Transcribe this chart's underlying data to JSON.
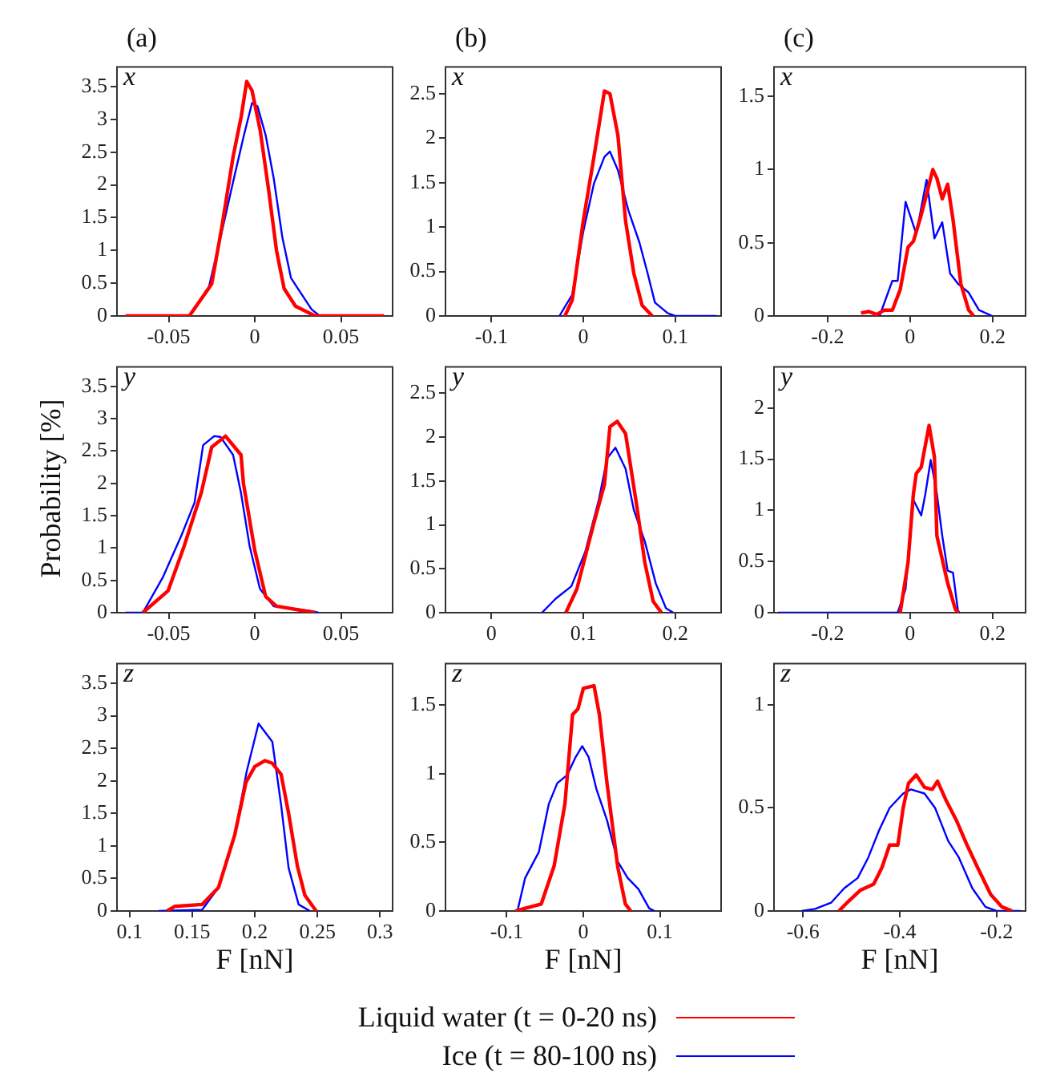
{
  "chart_data": [
    {
      "type": "line",
      "title": "(a)",
      "annotations": [
        "x"
      ],
      "xlim": [
        -0.08,
        0.08
      ],
      "xticks": [
        -0.05,
        0,
        0.05
      ],
      "ylim": [
        0,
        3.8
      ],
      "yticks": [
        0,
        0.5,
        1,
        1.5,
        2,
        2.5,
        3,
        3.5
      ],
      "legend": "bottom",
      "series": [
        {
          "name": "Liquid water (t = 0-20 ns)",
          "color": "#ff0000",
          "x": [
            -0.075,
            -0.038,
            -0.025,
            -0.019,
            -0.0126,
            -0.0079,
            -0.0047,
            -0.0016,
            0.0031,
            0.0079,
            0.0126,
            0.017,
            0.0236,
            0.035,
            0.075
          ],
          "values": [
            0,
            0,
            0.49,
            1.38,
            2.43,
            3.04,
            3.58,
            3.44,
            2.84,
            1.95,
            1.0,
            0.42,
            0.15,
            0,
            0
          ]
        },
        {
          "name": "Ice (t = 80-100 ns)",
          "color": "#0000ff",
          "x": [
            -0.05,
            -0.038,
            -0.027,
            -0.019,
            -0.013,
            -0.0063,
            -0.0016,
            0.0016,
            0.0063,
            0.011,
            0.016,
            0.021,
            0.0267,
            0.033,
            0.0377
          ],
          "values": [
            0,
            0,
            0.4,
            1.3,
            2.0,
            2.76,
            3.25,
            3.2,
            2.76,
            2.1,
            1.2,
            0.58,
            0.35,
            0.1,
            0
          ]
        }
      ]
    },
    {
      "type": "line",
      "title": "(b)",
      "annotations": [
        "x"
      ],
      "xlim": [
        -0.15,
        0.15
      ],
      "xticks": [
        -0.1,
        0,
        0.1
      ],
      "ylim": [
        0,
        2.8
      ],
      "yticks": [
        0,
        0.5,
        1,
        1.5,
        2,
        2.5
      ],
      "series": [
        {
          "color": "#ff0000",
          "x": [
            -0.02,
            -0.012,
            0,
            0.0116,
            0.023,
            0.029,
            0.0377,
            0.046,
            0.055,
            0.064,
            0.075
          ],
          "values": [
            0,
            0.18,
            1.07,
            1.79,
            2.53,
            2.5,
            2.03,
            1.07,
            0.48,
            0.12,
            0
          ]
        },
        {
          "color": "#0000ff",
          "x": [
            -0.026,
            -0.012,
            0,
            0.0116,
            0.023,
            0.029,
            0.0377,
            0.049,
            0.061,
            0.07,
            0.078,
            0.092,
            0.1,
            0.145
          ],
          "values": [
            0,
            0.24,
            0.95,
            1.49,
            1.79,
            1.85,
            1.64,
            1.19,
            0.83,
            0.48,
            0.15,
            0.03,
            0,
            0
          ]
        }
      ]
    },
    {
      "type": "line",
      "title": "(c)",
      "annotations": [
        "x"
      ],
      "xlim": [
        -0.33,
        0.28
      ],
      "xticks": [
        -0.2,
        0,
        0.2
      ],
      "ylim": [
        0,
        1.7
      ],
      "yticks": [
        0,
        0.5,
        1,
        1.5
      ],
      "series": [
        {
          "color": "#ff0000",
          "x": [
            -0.119,
            -0.1,
            -0.081,
            -0.062,
            -0.043,
            -0.024,
            -0.005,
            0.008,
            0.027,
            0.04,
            0.055,
            0.065,
            0.078,
            0.091,
            0.104,
            0.123,
            0.142,
            0.154
          ],
          "values": [
            0.02,
            0.03,
            0.01,
            0.04,
            0.04,
            0.18,
            0.47,
            0.51,
            0.69,
            0.83,
            1.0,
            0.94,
            0.8,
            0.9,
            0.66,
            0.22,
            0.04,
            0
          ]
        },
        {
          "color": "#0000ff",
          "x": [
            -0.074,
            -0.043,
            -0.03,
            -0.011,
            0.015,
            0.04,
            0.059,
            0.078,
            0.097,
            0.116,
            0.142,
            0.167,
            0.199
          ],
          "values": [
            0,
            0.24,
            0.24,
            0.78,
            0.56,
            0.93,
            0.53,
            0.64,
            0.29,
            0.22,
            0.16,
            0.04,
            0
          ]
        }
      ]
    },
    {
      "type": "line",
      "ylabel": "Probability [%]",
      "annotations": [
        "y"
      ],
      "xlim": [
        -0.08,
        0.08
      ],
      "xticks": [
        -0.05,
        0,
        0.05
      ],
      "ylim": [
        0,
        3.8
      ],
      "yticks": [
        0,
        0.5,
        1,
        1.5,
        2,
        2.5,
        3,
        3.5
      ],
      "series": [
        {
          "color": "#ff0000",
          "x": [
            -0.065,
            -0.0503,
            -0.041,
            -0.031,
            -0.025,
            -0.017,
            -0.008,
            -0.0066,
            0,
            0.0063,
            0.0126,
            0.035
          ],
          "values": [
            0,
            0.34,
            1.03,
            1.86,
            2.56,
            2.73,
            2.44,
            2.0,
            0.96,
            0.25,
            0.1,
            0
          ]
        },
        {
          "color": "#0000ff",
          "x": [
            -0.075,
            -0.065,
            -0.0535,
            -0.0425,
            -0.035,
            -0.03,
            -0.0236,
            -0.02,
            -0.0126,
            -0.008,
            -0.003,
            0.003,
            0.011,
            0.032,
            0.037
          ],
          "values": [
            0,
            0,
            0.54,
            1.2,
            1.7,
            2.59,
            2.73,
            2.72,
            2.44,
            1.85,
            1.03,
            0.37,
            0.1,
            0.03,
            0
          ]
        }
      ]
    },
    {
      "type": "line",
      "annotations": [
        "y"
      ],
      "xlim": [
        -0.05,
        0.25
      ],
      "xticks": [
        0,
        0.1,
        0.2
      ],
      "ylim": [
        0,
        2.8
      ],
      "yticks": [
        0,
        0.5,
        1,
        1.5,
        2,
        2.5
      ],
      "series": [
        {
          "color": "#ff0000",
          "x": [
            0.081,
            0.093,
            0.111,
            0.123,
            0.129,
            0.137,
            0.146,
            0.158,
            0.167,
            0.176,
            0.185
          ],
          "values": [
            0,
            0.27,
            1.0,
            1.46,
            2.12,
            2.18,
            2.04,
            1.23,
            0.57,
            0.13,
            0
          ]
        },
        {
          "color": "#0000ff",
          "x": [
            0.055,
            0.07,
            0.087,
            0.102,
            0.117,
            0.126,
            0.135,
            0.146,
            0.155,
            0.167,
            0.179,
            0.19,
            0.198
          ],
          "values": [
            0,
            0.16,
            0.3,
            0.69,
            1.29,
            1.76,
            1.88,
            1.64,
            1.17,
            0.81,
            0.33,
            0.05,
            0
          ]
        }
      ]
    },
    {
      "type": "line",
      "annotations": [
        "y"
      ],
      "xlim": [
        -0.33,
        0.28
      ],
      "xticks": [
        -0.2,
        0,
        0.2
      ],
      "ylim": [
        0,
        2.4
      ],
      "yticks": [
        0,
        0.5,
        1,
        1.5,
        2
      ],
      "series": [
        {
          "color": "#ff0000",
          "x": [
            -0.024,
            -0.005,
            0.008,
            0.015,
            0.027,
            0.046,
            0.059,
            0.065,
            0.091,
            0.11,
            0.118
          ],
          "values": [
            0,
            0.49,
            1.16,
            1.36,
            1.42,
            1.83,
            1.52,
            0.75,
            0.29,
            0.03,
            0
          ]
        },
        {
          "color": "#0000ff",
          "x": [
            -0.32,
            -0.03,
            -0.011,
            0.008,
            0.027,
            0.037,
            0.05,
            0.065,
            0.078,
            0.091,
            0.104,
            0.116,
            0.12
          ],
          "values": [
            0,
            0,
            0.23,
            1.1,
            0.95,
            1.16,
            1.49,
            1.16,
            0.75,
            0.41,
            0.39,
            0.02,
            0
          ]
        }
      ]
    },
    {
      "type": "line",
      "xlabel": "F [nN]",
      "annotations": [
        "z"
      ],
      "xlim": [
        0.09,
        0.31
      ],
      "xticks": [
        0.1,
        0.15,
        0.2,
        0.25,
        0.3
      ],
      "ylim": [
        0,
        3.8
      ],
      "yticks": [
        0,
        0.5,
        1,
        1.5,
        2,
        2.5,
        3,
        3.5
      ],
      "series": [
        {
          "color": "#ff0000",
          "x": [
            0.13,
            0.136,
            0.158,
            0.171,
            0.184,
            0.193,
            0.2,
            0.208,
            0.214,
            0.221,
            0.227,
            0.234,
            0.24,
            0.249
          ],
          "values": [
            0,
            0.07,
            0.1,
            0.36,
            1.17,
            1.98,
            2.22,
            2.31,
            2.27,
            2.1,
            1.5,
            0.69,
            0.24,
            0
          ]
        },
        {
          "color": "#0000ff",
          "x": [
            0.123,
            0.158,
            0.171,
            0.184,
            0.1935,
            0.203,
            0.214,
            0.221,
            0.227,
            0.235,
            0.244
          ],
          "values": [
            0,
            0.02,
            0.36,
            1.17,
            2.14,
            2.88,
            2.6,
            1.63,
            0.66,
            0.1,
            0
          ]
        }
      ]
    },
    {
      "type": "line",
      "xlabel": "F [nN]",
      "annotations": [
        "z"
      ],
      "xlim": [
        -0.18,
        0.18
      ],
      "xticks": [
        -0.1,
        0,
        0.1
      ],
      "ylim": [
        0,
        1.8
      ],
      "yticks": [
        0,
        0.5,
        1,
        1.5
      ],
      "series": [
        {
          "color": "#ff0000",
          "x": [
            -0.089,
            -0.076,
            -0.055,
            -0.038,
            -0.024,
            -0.014,
            -0.007,
            0,
            0.014,
            0.021,
            0.031,
            0.045,
            0.055,
            0.062
          ],
          "values": [
            0,
            0.02,
            0.05,
            0.33,
            0.78,
            1.43,
            1.47,
            1.62,
            1.64,
            1.43,
            0.93,
            0.32,
            0.05,
            0
          ]
        },
        {
          "color": "#0000ff",
          "x": [
            -0.086,
            -0.076,
            -0.058,
            -0.045,
            -0.034,
            -0.021,
            -0.01,
            -0.0014,
            0.007,
            0.017,
            0.031,
            0.045,
            0.058,
            0.072,
            0.086,
            0.093
          ],
          "values": [
            0,
            0.24,
            0.43,
            0.78,
            0.93,
            0.99,
            1.12,
            1.2,
            1.12,
            0.89,
            0.66,
            0.36,
            0.24,
            0.16,
            0.02,
            0
          ]
        }
      ]
    },
    {
      "type": "line",
      "xlabel": "F [nN]",
      "annotations": [
        "z"
      ],
      "xlim": [
        -0.66,
        -0.14
      ],
      "xticks": [
        -0.6,
        -0.4,
        -0.2
      ],
      "ylim": [
        0,
        1.2
      ],
      "yticks": [
        0,
        0.5,
        1
      ],
      "series": [
        {
          "color": "#ff0000",
          "x": [
            -0.526,
            -0.509,
            -0.482,
            -0.454,
            -0.437,
            -0.421,
            -0.404,
            -0.393,
            -0.382,
            -0.366,
            -0.349,
            -0.333,
            -0.322,
            -0.305,
            -0.283,
            -0.261,
            -0.239,
            -0.212,
            -0.189,
            -0.168
          ],
          "values": [
            0,
            0.04,
            0.1,
            0.13,
            0.21,
            0.32,
            0.32,
            0.5,
            0.62,
            0.66,
            0.6,
            0.59,
            0.63,
            0.54,
            0.44,
            0.32,
            0.21,
            0.08,
            0.02,
            0
          ]
        },
        {
          "color": "#0000ff",
          "x": [
            -0.603,
            -0.575,
            -0.542,
            -0.515,
            -0.487,
            -0.465,
            -0.443,
            -0.421,
            -0.393,
            -0.377,
            -0.349,
            -0.327,
            -0.3,
            -0.278,
            -0.25,
            -0.223,
            -0.2,
            -0.15
          ],
          "values": [
            0,
            0.01,
            0.04,
            0.11,
            0.16,
            0.26,
            0.39,
            0.5,
            0.57,
            0.59,
            0.57,
            0.5,
            0.34,
            0.26,
            0.11,
            0.02,
            0,
            0
          ]
        }
      ]
    }
  ]
}
